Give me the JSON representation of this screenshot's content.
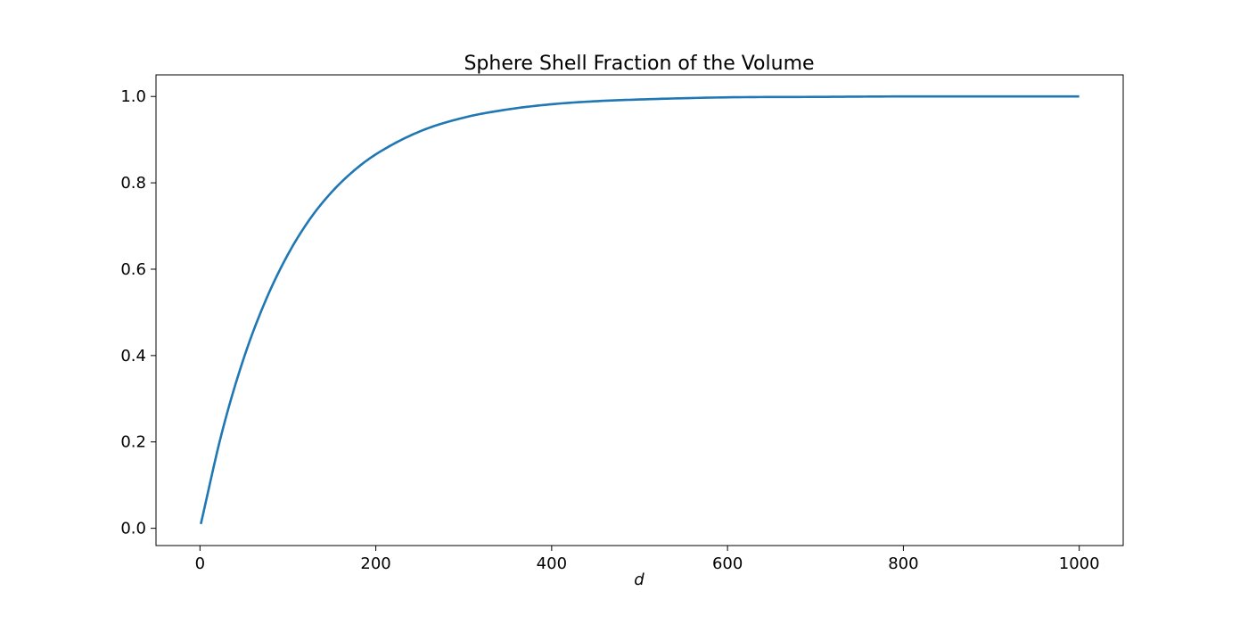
{
  "chart_data": {
    "type": "line",
    "title": "Sphere Shell Fraction of the Volume",
    "xlabel": "d",
    "ylabel": "",
    "xlim": [
      -50,
      1050
    ],
    "ylim": [
      -0.04,
      1.05
    ],
    "xticks": [
      0,
      200,
      400,
      600,
      800,
      1000
    ],
    "xtick_labels": [
      "0",
      "200",
      "400",
      "600",
      "800",
      "1000"
    ],
    "yticks": [
      0.0,
      0.2,
      0.4,
      0.6,
      0.8,
      1.0
    ],
    "ytick_labels": [
      "0.0",
      "0.2",
      "0.4",
      "0.6",
      "0.8",
      "1.0"
    ],
    "grid": false,
    "series": [
      {
        "color": "#1f77b4",
        "x": [
          1,
          25,
          50,
          75,
          100,
          125,
          150,
          175,
          200,
          250,
          300,
          350,
          400,
          450,
          500,
          600,
          700,
          800,
          900,
          1000
        ],
        "y": [
          0.01,
          0.222,
          0.395,
          0.529,
          0.634,
          0.716,
          0.779,
          0.828,
          0.866,
          0.919,
          0.951,
          0.97,
          0.982,
          0.989,
          0.993,
          0.998,
          0.999,
          1.0,
          1.0,
          1.0
        ]
      }
    ]
  }
}
